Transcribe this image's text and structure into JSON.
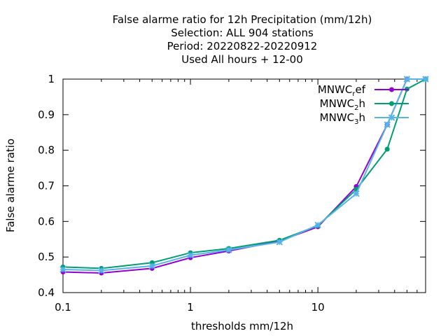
{
  "chart_data": {
    "type": "line",
    "title_lines": [
      "False alarme ratio  for 12h Precipitation (mm/12h)",
      "Selection: ALL    904 stations",
      "Period: 20220822-20220912",
      "Used  All hours  + 12-00"
    ],
    "xlabel": "thresholds mm/12h",
    "ylabel": "False alarme ratio",
    "x_scale": "log",
    "xlim": [
      0.1,
      70
    ],
    "ylim": [
      0.4,
      1.0
    ],
    "x_ticks": [
      "0.1",
      "1",
      "10"
    ],
    "y_ticks": [
      "0.4",
      "0.5",
      "0.6",
      "0.7",
      "0.8",
      "0.9",
      "1"
    ],
    "grid": false,
    "legend_position": "top-right",
    "x": [
      0.1,
      0.2,
      0.5,
      1,
      2,
      5,
      10,
      20,
      35,
      50,
      70
    ],
    "series": [
      {
        "legend": {
          "base": "MNWC",
          "sub": "r",
          "rest": "ef"
        },
        "color": "#9400d3",
        "marker": "circle",
        "values": [
          0.458,
          0.455,
          0.468,
          0.498,
          0.517,
          0.545,
          0.585,
          0.698,
          0.872,
          1.0,
          1.0
        ]
      },
      {
        "legend": {
          "base": "MNWC",
          "sub": "2",
          "rest": "h"
        },
        "color": "#009e73",
        "marker": "circle",
        "values": [
          0.472,
          0.468,
          0.484,
          0.512,
          0.524,
          0.547,
          0.588,
          0.69,
          0.803,
          0.972,
          1.0
        ]
      },
      {
        "legend": {
          "base": "MNWC",
          "sub": "3",
          "rest": "h"
        },
        "color": "#56b4e9",
        "marker": "x",
        "values": [
          0.465,
          0.462,
          0.475,
          0.505,
          0.52,
          0.542,
          0.59,
          0.678,
          0.872,
          1.0,
          1.0
        ]
      }
    ]
  }
}
